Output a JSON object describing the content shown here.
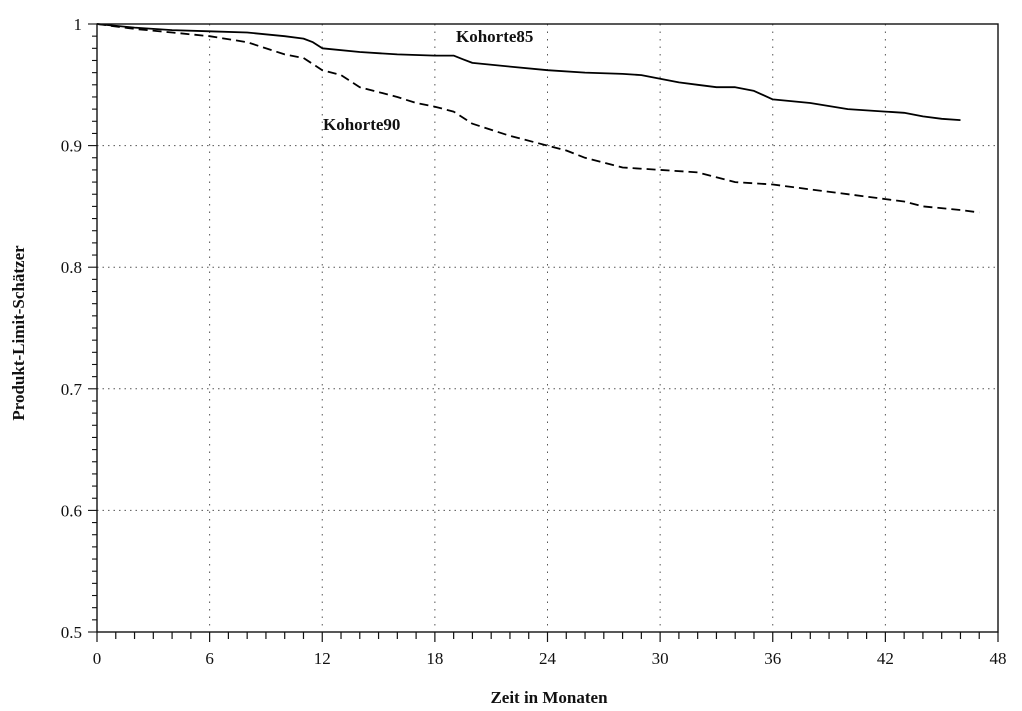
{
  "chart_data": {
    "type": "line",
    "title": "",
    "xlabel": "Zeit in Monaten",
    "ylabel": "Produkt-Limit-Schätzer",
    "xlim": [
      0,
      48
    ],
    "ylim": [
      0.5,
      1
    ],
    "x_ticks": [
      0,
      6,
      12,
      18,
      24,
      30,
      36,
      42,
      48
    ],
    "x_tick_labels": [
      "0",
      "6",
      "12",
      "18",
      "24",
      "30",
      "36",
      "42",
      "48"
    ],
    "y_ticks": [
      0.5,
      0.6,
      0.7,
      0.8,
      0.9,
      1
    ],
    "y_tick_labels": [
      "0.5",
      "0.6",
      "0.7",
      "0.8",
      "0.9",
      "1"
    ],
    "grid": true,
    "series": [
      {
        "name": "Kohorte85",
        "style": "solid",
        "color": "#000000",
        "x": [
          0,
          2,
          4,
          6,
          8,
          10,
          11,
          11.5,
          12,
          14,
          16,
          18,
          19,
          19.5,
          20,
          22,
          24,
          26,
          28,
          29,
          30,
          31,
          32,
          33,
          34,
          35,
          36,
          38,
          40,
          42,
          43,
          44,
          45,
          46
        ],
        "values": [
          1,
          0.997,
          0.995,
          0.994,
          0.993,
          0.99,
          0.988,
          0.985,
          0.98,
          0.977,
          0.975,
          0.974,
          0.974,
          0.971,
          0.968,
          0.965,
          0.962,
          0.96,
          0.959,
          0.958,
          0.955,
          0.952,
          0.95,
          0.948,
          0.948,
          0.945,
          0.938,
          0.935,
          0.93,
          0.928,
          0.927,
          0.924,
          0.922,
          0.921
        ]
      },
      {
        "name": "Kohorte90",
        "style": "dashed",
        "color": "#000000",
        "x": [
          0,
          2,
          4,
          6,
          8,
          10,
          11,
          12,
          13,
          14,
          16,
          17,
          18,
          19,
          20,
          22,
          24,
          25,
          26,
          27,
          28,
          30,
          32,
          34,
          36,
          38,
          40,
          42,
          43,
          44,
          46,
          47
        ],
        "values": [
          1,
          0.996,
          0.993,
          0.99,
          0.985,
          0.975,
          0.972,
          0.962,
          0.958,
          0.948,
          0.94,
          0.935,
          0.932,
          0.928,
          0.918,
          0.908,
          0.9,
          0.896,
          0.89,
          0.886,
          0.882,
          0.88,
          0.878,
          0.87,
          0.868,
          0.864,
          0.86,
          0.856,
          0.854,
          0.85,
          0.847,
          0.845
        ]
      }
    ]
  }
}
